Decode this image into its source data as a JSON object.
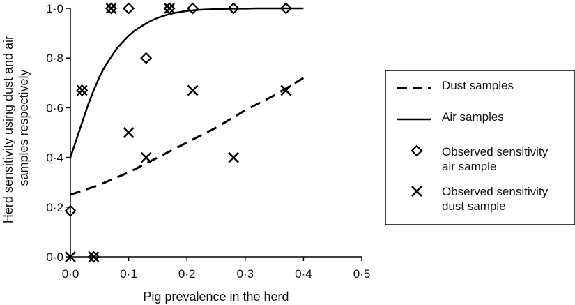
{
  "chart_data": {
    "type": "scatter",
    "xlabel": "Pig prevalence in the herd",
    "ylabel_lines": [
      "Herd sensitivity using dust and air",
      "samples respectively"
    ],
    "xlim": [
      0,
      0.5
    ],
    "ylim": [
      0,
      1
    ],
    "x_ticks": [
      0,
      0.1,
      0.2,
      0.3,
      0.4,
      0.5
    ],
    "x_tick_labels": [
      "0·0",
      "0·1",
      "0·2",
      "0·3",
      "0·4",
      "0·5"
    ],
    "y_ticks": [
      0,
      0.2,
      0.4,
      0.6,
      0.8,
      1.0
    ],
    "y_tick_labels": [
      "0·0",
      "0·2",
      "0·4",
      "0·6",
      "0·8",
      "1·0"
    ],
    "grid": false,
    "legend_position": "right",
    "legend": [
      {
        "label": "Dust samples",
        "symbol": "dashed-line"
      },
      {
        "label": "Air samples",
        "symbol": "solid-line"
      },
      {
        "label_lines": [
          "Observed sensitivity",
          "air sample"
        ],
        "symbol": "diamond"
      },
      {
        "label_lines": [
          "Observed sensitivity",
          "dust sample"
        ],
        "symbol": "cross"
      }
    ],
    "series": [
      {
        "kind": "line",
        "style": "solid",
        "legend_index": 1,
        "x": [
          0,
          0.01,
          0.02,
          0.03,
          0.04,
          0.05,
          0.06,
          0.07,
          0.08,
          0.09,
          0.1,
          0.11,
          0.12,
          0.13,
          0.14,
          0.15,
          0.16,
          0.17,
          0.18,
          0.19,
          0.2,
          0.22,
          0.24,
          0.26,
          0.28,
          0.3,
          0.32,
          0.35,
          0.4
        ],
        "y": [
          0.4,
          0.47,
          0.54,
          0.61,
          0.67,
          0.725,
          0.77,
          0.805,
          0.84,
          0.865,
          0.89,
          0.91,
          0.925,
          0.94,
          0.952,
          0.962,
          0.97,
          0.977,
          0.982,
          0.986,
          0.99,
          0.994,
          0.996,
          0.998,
          0.999,
          0.999,
          1.0,
          1.0,
          1.0
        ]
      },
      {
        "kind": "line",
        "style": "dashed",
        "legend_index": 0,
        "x": [
          0,
          0.05,
          0.1,
          0.15,
          0.2,
          0.25,
          0.3,
          0.35,
          0.4
        ],
        "y": [
          0.25,
          0.29,
          0.34,
          0.4,
          0.46,
          0.52,
          0.59,
          0.65,
          0.72
        ]
      },
      {
        "kind": "scatter",
        "marker": "diamond",
        "legend_index": 2,
        "x": [
          0,
          0.02,
          0.04,
          0.07,
          0.1,
          0.13,
          0.17,
          0.21,
          0.28,
          0.37
        ],
        "y": [
          0.185,
          0.67,
          0,
          1,
          1,
          0.8,
          1,
          1,
          1,
          1
        ]
      },
      {
        "kind": "scatter",
        "marker": "cross",
        "legend_index": 3,
        "x": [
          0,
          0.02,
          0.04,
          0.07,
          0.1,
          0.13,
          0.17,
          0.21,
          0.28,
          0.37
        ],
        "y": [
          0,
          0.67,
          0,
          1,
          0.5,
          0.4,
          1,
          0.67,
          0.4,
          0.67
        ]
      }
    ]
  }
}
